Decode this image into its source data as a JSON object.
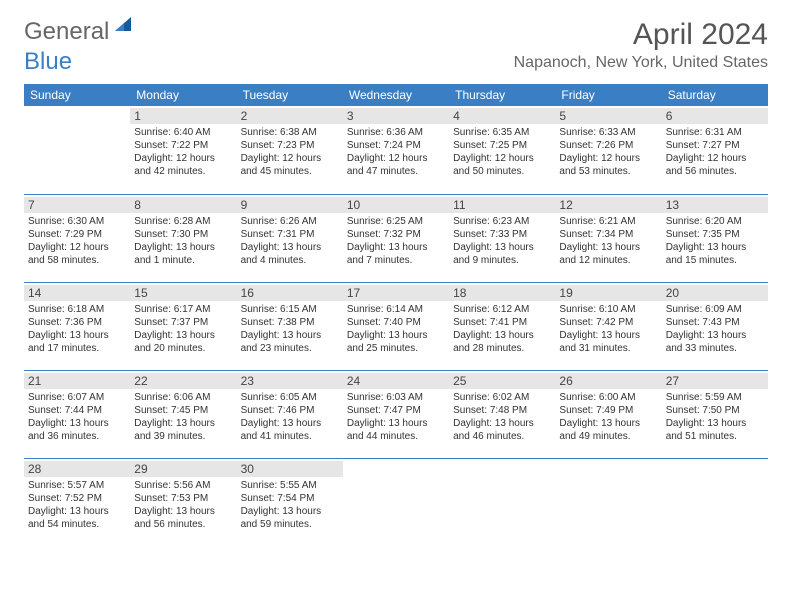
{
  "logo": {
    "word1": "General",
    "word2": "Blue",
    "color1": "#666666",
    "color2": "#3a7fc4"
  },
  "title": "April 2024",
  "location": "Napanoch, New York, United States",
  "header_bg": "#3a7fc4",
  "daynum_bg": "#e6e6e6",
  "days": [
    "Sunday",
    "Monday",
    "Tuesday",
    "Wednesday",
    "Thursday",
    "Friday",
    "Saturday"
  ],
  "weeks": [
    [
      {
        "n": "",
        "empty": true
      },
      {
        "n": "1",
        "sr": "Sunrise: 6:40 AM",
        "ss": "Sunset: 7:22 PM",
        "d1": "Daylight: 12 hours",
        "d2": "and 42 minutes."
      },
      {
        "n": "2",
        "sr": "Sunrise: 6:38 AM",
        "ss": "Sunset: 7:23 PM",
        "d1": "Daylight: 12 hours",
        "d2": "and 45 minutes."
      },
      {
        "n": "3",
        "sr": "Sunrise: 6:36 AM",
        "ss": "Sunset: 7:24 PM",
        "d1": "Daylight: 12 hours",
        "d2": "and 47 minutes."
      },
      {
        "n": "4",
        "sr": "Sunrise: 6:35 AM",
        "ss": "Sunset: 7:25 PM",
        "d1": "Daylight: 12 hours",
        "d2": "and 50 minutes."
      },
      {
        "n": "5",
        "sr": "Sunrise: 6:33 AM",
        "ss": "Sunset: 7:26 PM",
        "d1": "Daylight: 12 hours",
        "d2": "and 53 minutes."
      },
      {
        "n": "6",
        "sr": "Sunrise: 6:31 AM",
        "ss": "Sunset: 7:27 PM",
        "d1": "Daylight: 12 hours",
        "d2": "and 56 minutes."
      }
    ],
    [
      {
        "n": "7",
        "sr": "Sunrise: 6:30 AM",
        "ss": "Sunset: 7:29 PM",
        "d1": "Daylight: 12 hours",
        "d2": "and 58 minutes."
      },
      {
        "n": "8",
        "sr": "Sunrise: 6:28 AM",
        "ss": "Sunset: 7:30 PM",
        "d1": "Daylight: 13 hours",
        "d2": "and 1 minute."
      },
      {
        "n": "9",
        "sr": "Sunrise: 6:26 AM",
        "ss": "Sunset: 7:31 PM",
        "d1": "Daylight: 13 hours",
        "d2": "and 4 minutes."
      },
      {
        "n": "10",
        "sr": "Sunrise: 6:25 AM",
        "ss": "Sunset: 7:32 PM",
        "d1": "Daylight: 13 hours",
        "d2": "and 7 minutes."
      },
      {
        "n": "11",
        "sr": "Sunrise: 6:23 AM",
        "ss": "Sunset: 7:33 PM",
        "d1": "Daylight: 13 hours",
        "d2": "and 9 minutes."
      },
      {
        "n": "12",
        "sr": "Sunrise: 6:21 AM",
        "ss": "Sunset: 7:34 PM",
        "d1": "Daylight: 13 hours",
        "d2": "and 12 minutes."
      },
      {
        "n": "13",
        "sr": "Sunrise: 6:20 AM",
        "ss": "Sunset: 7:35 PM",
        "d1": "Daylight: 13 hours",
        "d2": "and 15 minutes."
      }
    ],
    [
      {
        "n": "14",
        "sr": "Sunrise: 6:18 AM",
        "ss": "Sunset: 7:36 PM",
        "d1": "Daylight: 13 hours",
        "d2": "and 17 minutes."
      },
      {
        "n": "15",
        "sr": "Sunrise: 6:17 AM",
        "ss": "Sunset: 7:37 PM",
        "d1": "Daylight: 13 hours",
        "d2": "and 20 minutes."
      },
      {
        "n": "16",
        "sr": "Sunrise: 6:15 AM",
        "ss": "Sunset: 7:38 PM",
        "d1": "Daylight: 13 hours",
        "d2": "and 23 minutes."
      },
      {
        "n": "17",
        "sr": "Sunrise: 6:14 AM",
        "ss": "Sunset: 7:40 PM",
        "d1": "Daylight: 13 hours",
        "d2": "and 25 minutes."
      },
      {
        "n": "18",
        "sr": "Sunrise: 6:12 AM",
        "ss": "Sunset: 7:41 PM",
        "d1": "Daylight: 13 hours",
        "d2": "and 28 minutes."
      },
      {
        "n": "19",
        "sr": "Sunrise: 6:10 AM",
        "ss": "Sunset: 7:42 PM",
        "d1": "Daylight: 13 hours",
        "d2": "and 31 minutes."
      },
      {
        "n": "20",
        "sr": "Sunrise: 6:09 AM",
        "ss": "Sunset: 7:43 PM",
        "d1": "Daylight: 13 hours",
        "d2": "and 33 minutes."
      }
    ],
    [
      {
        "n": "21",
        "sr": "Sunrise: 6:07 AM",
        "ss": "Sunset: 7:44 PM",
        "d1": "Daylight: 13 hours",
        "d2": "and 36 minutes."
      },
      {
        "n": "22",
        "sr": "Sunrise: 6:06 AM",
        "ss": "Sunset: 7:45 PM",
        "d1": "Daylight: 13 hours",
        "d2": "and 39 minutes."
      },
      {
        "n": "23",
        "sr": "Sunrise: 6:05 AM",
        "ss": "Sunset: 7:46 PM",
        "d1": "Daylight: 13 hours",
        "d2": "and 41 minutes."
      },
      {
        "n": "24",
        "sr": "Sunrise: 6:03 AM",
        "ss": "Sunset: 7:47 PM",
        "d1": "Daylight: 13 hours",
        "d2": "and 44 minutes."
      },
      {
        "n": "25",
        "sr": "Sunrise: 6:02 AM",
        "ss": "Sunset: 7:48 PM",
        "d1": "Daylight: 13 hours",
        "d2": "and 46 minutes."
      },
      {
        "n": "26",
        "sr": "Sunrise: 6:00 AM",
        "ss": "Sunset: 7:49 PM",
        "d1": "Daylight: 13 hours",
        "d2": "and 49 minutes."
      },
      {
        "n": "27",
        "sr": "Sunrise: 5:59 AM",
        "ss": "Sunset: 7:50 PM",
        "d1": "Daylight: 13 hours",
        "d2": "and 51 minutes."
      }
    ],
    [
      {
        "n": "28",
        "sr": "Sunrise: 5:57 AM",
        "ss": "Sunset: 7:52 PM",
        "d1": "Daylight: 13 hours",
        "d2": "and 54 minutes."
      },
      {
        "n": "29",
        "sr": "Sunrise: 5:56 AM",
        "ss": "Sunset: 7:53 PM",
        "d1": "Daylight: 13 hours",
        "d2": "and 56 minutes."
      },
      {
        "n": "30",
        "sr": "Sunrise: 5:55 AM",
        "ss": "Sunset: 7:54 PM",
        "d1": "Daylight: 13 hours",
        "d2": "and 59 minutes."
      },
      {
        "n": "",
        "empty": true
      },
      {
        "n": "",
        "empty": true
      },
      {
        "n": "",
        "empty": true
      },
      {
        "n": "",
        "empty": true
      }
    ]
  ]
}
